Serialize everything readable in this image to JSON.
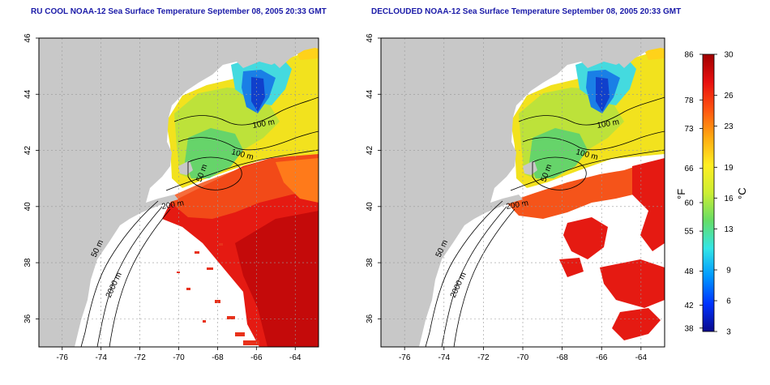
{
  "panels": [
    {
      "title": "RU COOL NOAA-12 Sea Surface Temperature September 08, 2005 20:33 GMT",
      "variant": "full",
      "contour_labels": [
        "100 m",
        "100 m",
        "50 m",
        "200 m",
        "50 m",
        "2000 m"
      ]
    },
    {
      "title": "DECLOUDED NOAA-12 Sea Surface Temperature September 08, 2005 20:33 GMT",
      "variant": "declouded",
      "contour_labels": [
        "100 m",
        "100 m",
        "50 m",
        "200 m",
        "50 m",
        "2000 m"
      ]
    }
  ],
  "axes": {
    "x_ticks": [
      "-76",
      "-74",
      "-72",
      "-70",
      "-68",
      "-66",
      "-64"
    ],
    "y_ticks": [
      "46",
      "44",
      "42",
      "40",
      "38",
      "36"
    ],
    "lon_range": [
      -77.2,
      -62.8
    ],
    "lat_range": [
      35.0,
      46.0
    ],
    "grid": "dotted"
  },
  "colorbar": {
    "fahrenheit_label": "°F",
    "celsius_label": "°C",
    "fahrenheit_ticks": [
      "86",
      "78",
      "73",
      "66",
      "60",
      "55",
      "48",
      "42",
      "38"
    ],
    "celsius_ticks": [
      "30",
      "26",
      "23",
      "19",
      "16",
      "13",
      "9",
      "6",
      "3"
    ],
    "range_c": [
      3,
      30
    ],
    "colors": [
      "#0a0a8c",
      "#0033ff",
      "#0099ff",
      "#33e6e6",
      "#66dd66",
      "#ccee33",
      "#ffee22",
      "#ffaa11",
      "#ff5511",
      "#e81010",
      "#a00000"
    ]
  },
  "map_colors": {
    "land": "#c8c8c8",
    "ocean_no_data": "#ffffff"
  }
}
